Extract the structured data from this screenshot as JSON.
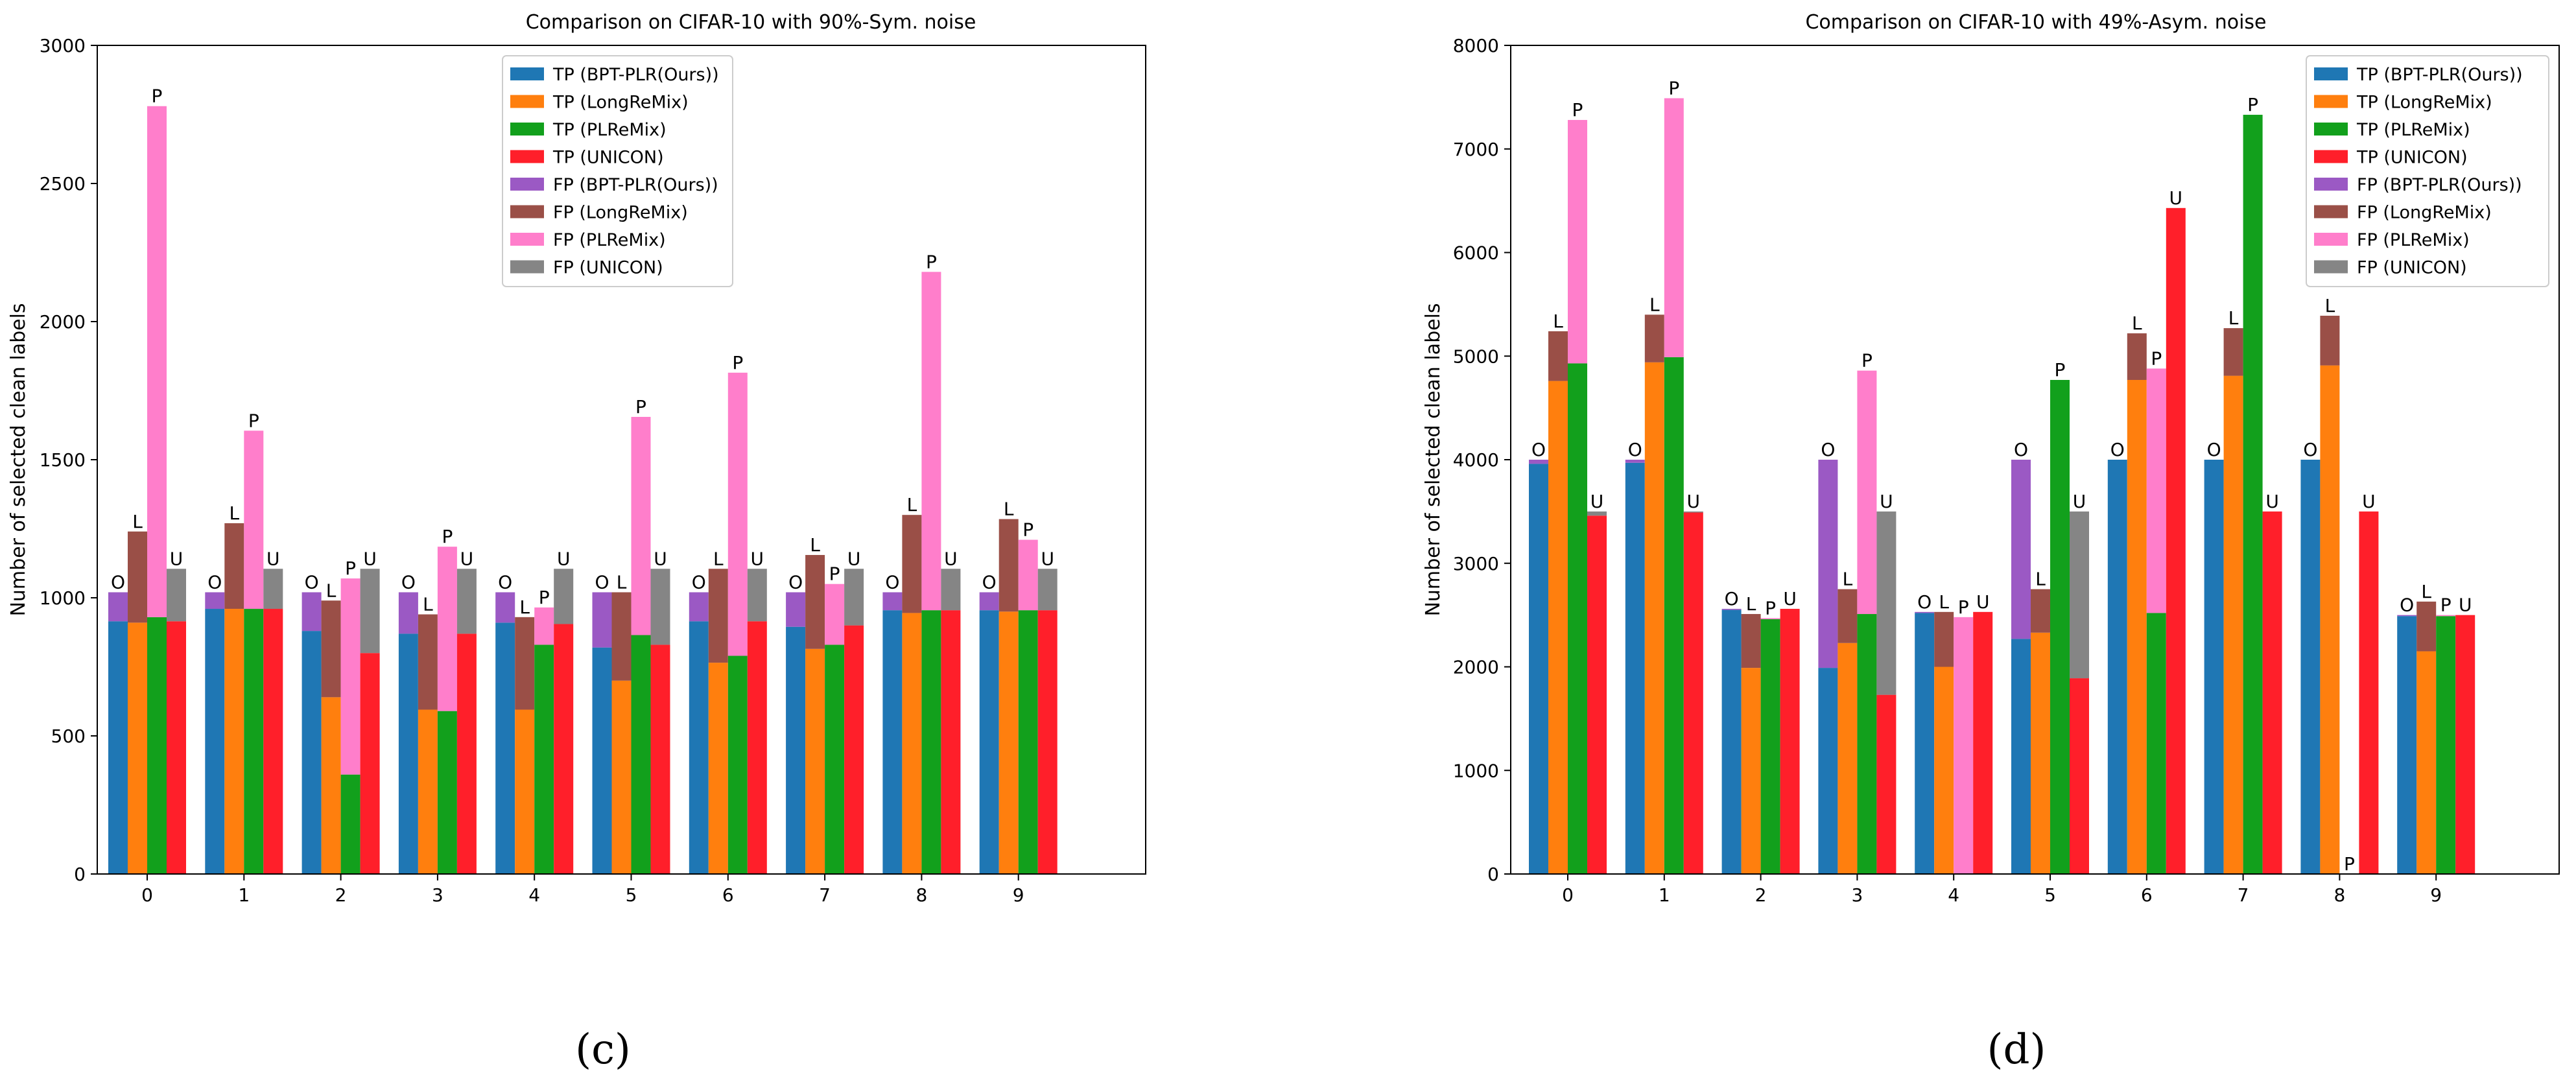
{
  "colors": {
    "tp_ours": "#1f77b4",
    "tp_longremix": "#ff7f0e",
    "tp_plremix": "#12a01c",
    "tp_unicon": "#ff1f2a",
    "fp_ours": "#9b59c4",
    "fp_longremix": "#9a4f47",
    "fp_plremix": "#ff7ecb",
    "fp_unicon": "#858585"
  },
  "method_letters": [
    "O",
    "L",
    "P",
    "U"
  ],
  "chart_data": [
    {
      "type": "bar",
      "stacked": true,
      "title": "Comparison on CIFAR-10 with 90%-Sym. noise",
      "ylabel": "Number of selected clean labels",
      "xlabel": "",
      "caption": "(c)",
      "categories": [
        "0",
        "1",
        "2",
        "3",
        "4",
        "5",
        "6",
        "7",
        "8",
        "9"
      ],
      "ylim": [
        0,
        3000
      ],
      "yticks": [
        "0",
        "500",
        "1000",
        "1500",
        "2000",
        "2500",
        "3000"
      ],
      "legend_loc": "top-center",
      "legend": [
        "TP (BPT-PLR(Ours))",
        "TP (LongReMix)",
        "TP (PLReMix)",
        "TP (UNICON)",
        "FP (BPT-PLR(Ours))",
        "FP (LongReMix)",
        "FP (PLReMix)",
        "FP (UNICON)"
      ],
      "series": [
        {
          "name": "BPT-PLR(Ours)",
          "letter": "O",
          "tp": [
            915,
            960,
            880,
            870,
            910,
            820,
            915,
            895,
            955,
            955
          ],
          "total": [
            1020,
            1020,
            1020,
            1020,
            1020,
            1020,
            1020,
            1020,
            1020,
            1020
          ]
        },
        {
          "name": "LongReMix",
          "letter": "L",
          "tp": [
            910,
            960,
            640,
            595,
            595,
            700,
            765,
            815,
            945,
            950
          ],
          "total": [
            1240,
            1270,
            990,
            940,
            930,
            1020,
            1105,
            1155,
            1300,
            1285
          ]
        },
        {
          "name": "PLReMix",
          "letter": "P",
          "tp": [
            930,
            960,
            360,
            590,
            830,
            865,
            790,
            830,
            955,
            955
          ],
          "total": [
            2780,
            1605,
            1070,
            1185,
            965,
            1655,
            1815,
            1050,
            2180,
            1210
          ]
        },
        {
          "name": "UNICON",
          "letter": "U",
          "tp": [
            915,
            960,
            800,
            870,
            905,
            830,
            915,
            900,
            955,
            955
          ],
          "total": [
            1105,
            1105,
            1105,
            1105,
            1105,
            1105,
            1105,
            1105,
            1105,
            1105
          ]
        }
      ]
    },
    {
      "type": "bar",
      "stacked": true,
      "title": "Comparison on CIFAR-10 with 49%-Asym. noise",
      "ylabel": "Number of selected clean labels",
      "xlabel": "",
      "caption": "(d)",
      "categories": [
        "0",
        "1",
        "2",
        "3",
        "4",
        "5",
        "6",
        "7",
        "8",
        "9"
      ],
      "ylim": [
        0,
        8000
      ],
      "yticks": [
        "0",
        "1000",
        "2000",
        "3000",
        "4000",
        "5000",
        "6000",
        "7000",
        "8000"
      ],
      "legend_loc": "top-right",
      "legend": [
        "TP (BPT-PLR(Ours))",
        "TP (LongReMix)",
        "TP (PLReMix)",
        "TP (UNICON)",
        "FP (BPT-PLR(Ours))",
        "FP (LongReMix)",
        "FP (PLReMix)",
        "FP (UNICON)"
      ],
      "series": [
        {
          "name": "BPT-PLR(Ours)",
          "letter": "O",
          "tp": [
            3960,
            3970,
            2550,
            1990,
            2520,
            2270,
            4000,
            4000,
            4000,
            2490
          ],
          "total": [
            4000,
            4000,
            2560,
            4000,
            2530,
            4000,
            4000,
            4000,
            4000,
            2500
          ]
        },
        {
          "name": "LongReMix",
          "letter": "L",
          "tp": [
            4760,
            4940,
            1990,
            2230,
            2000,
            2330,
            4770,
            4810,
            4910,
            2150
          ],
          "total": [
            5240,
            5400,
            2510,
            2750,
            2530,
            2750,
            5220,
            5270,
            5390,
            2630
          ]
        },
        {
          "name": "PLReMix",
          "letter": "P",
          "tp": [
            4930,
            4990,
            2460,
            2510,
            0,
            4770,
            2520,
            7330,
            0,
            2490
          ],
          "total": [
            7280,
            7490,
            2470,
            4860,
            2480,
            4770,
            4880,
            7330,
            0,
            2500
          ]
        },
        {
          "name": "UNICON",
          "letter": "U",
          "tp": [
            3460,
            3490,
            2560,
            1730,
            2530,
            1890,
            6430,
            3500,
            3500,
            2500
          ],
          "total": [
            3500,
            3500,
            2560,
            3500,
            2530,
            3500,
            6430,
            3500,
            3500,
            2500
          ]
        }
      ]
    }
  ]
}
